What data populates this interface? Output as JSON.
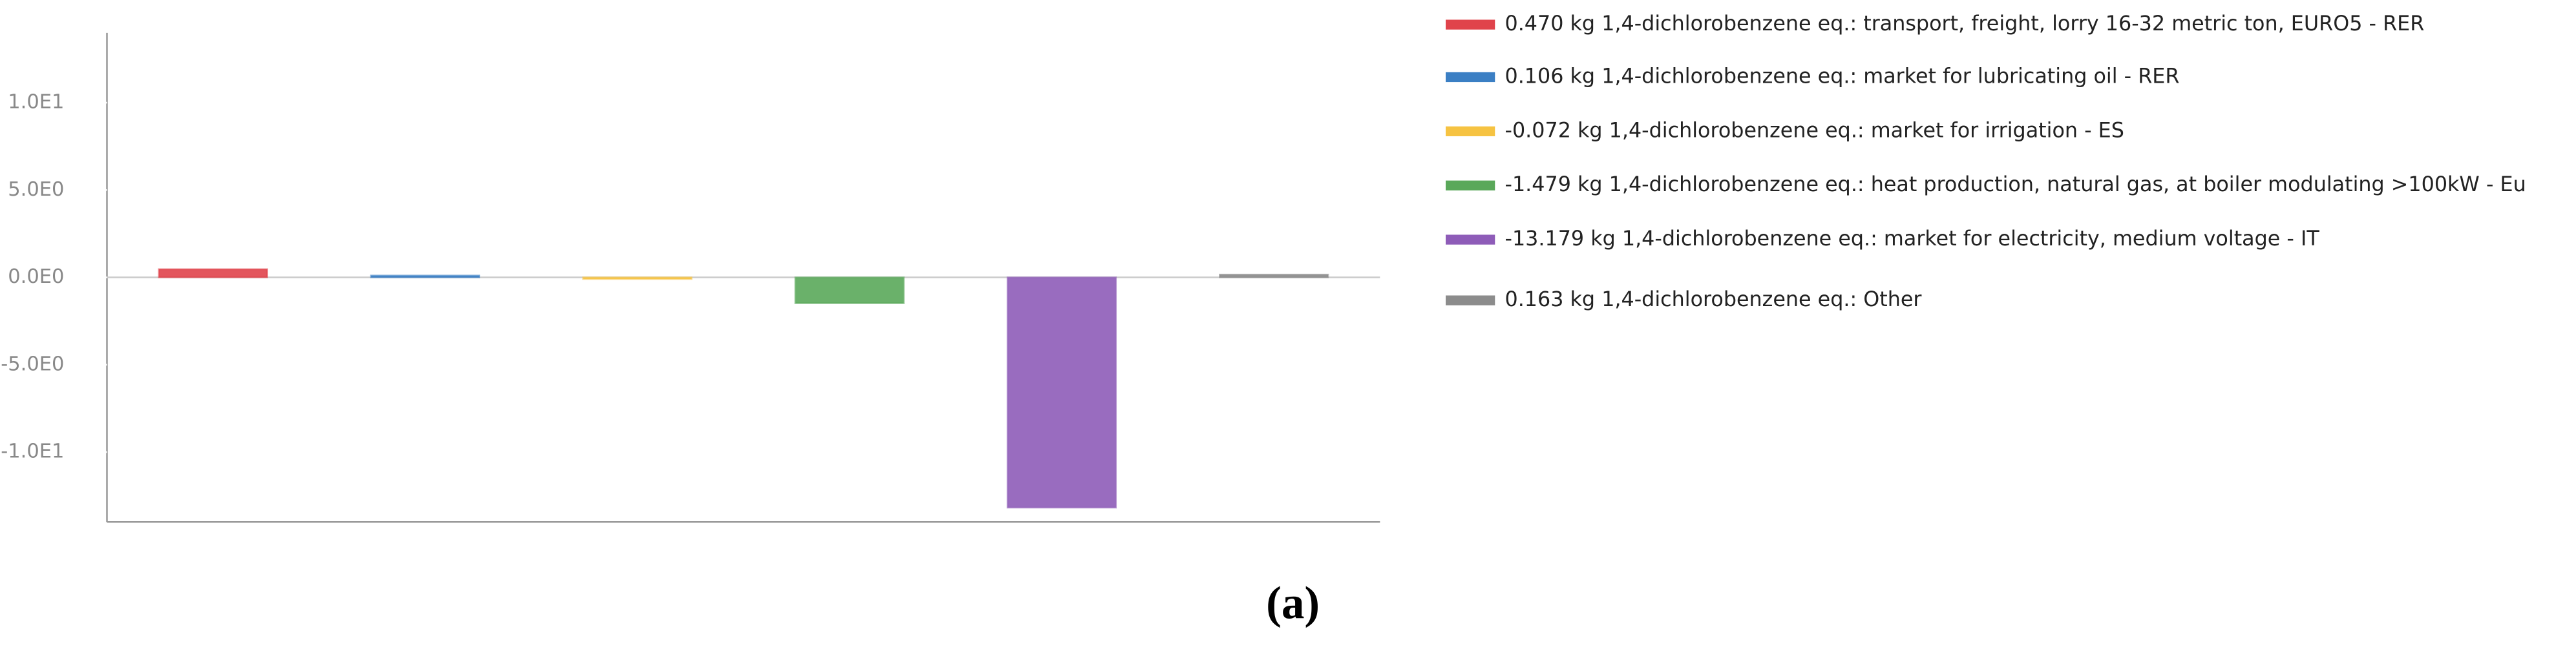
{
  "chart_data": {
    "type": "bar",
    "categories": [
      "0.470 kg 1,4-dichlorobenzene eq.: transport, freight, lorry 16-32 metric ton, EURO5  - RER",
      "0.106 kg 1,4-dichlorobenzene eq.: market for lubricating oil  - RER",
      "-0.072 kg 1,4-dichlorobenzene eq.: market for irrigation - ES",
      "-1.479 kg 1,4-dichlorobenzene eq.: heat production, natural gas, at boiler modulating >100kW  - Eu",
      "-13.179 kg 1,4-dichlorobenzene eq.: market for electricity, medium voltage - IT",
      "0.163 kg 1,4-dichlorobenzene eq.: Other"
    ],
    "values": [
      0.47,
      0.106,
      -0.072,
      -1.479,
      -13.179,
      0.163
    ],
    "colors": [
      "#e0434b",
      "#3b7fc4",
      "#f6c342",
      "#5aa85a",
      "#8e5cb8",
      "#8c8c8c"
    ],
    "ylim": [
      -14,
      14
    ],
    "yticks": [
      {
        "value": 10,
        "label": "1.0E1"
      },
      {
        "value": 5,
        "label": "5.0E0"
      },
      {
        "value": 0,
        "label": "0.0E0"
      },
      {
        "value": -5,
        "label": "-5.0E0"
      },
      {
        "value": -10,
        "label": "-1.0E1"
      }
    ],
    "caption": "(a)"
  }
}
